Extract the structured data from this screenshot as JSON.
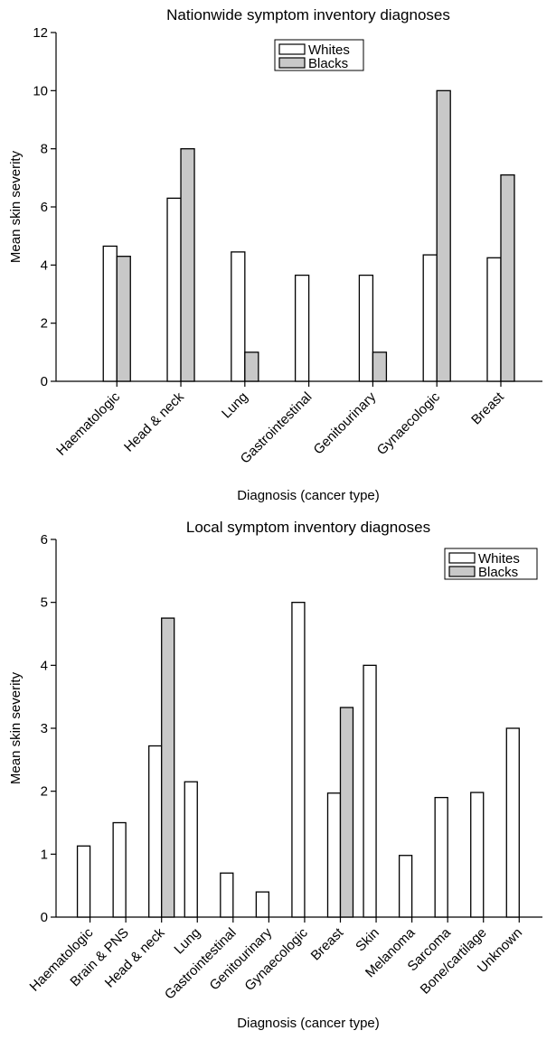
{
  "colors": {
    "whites": "#ffffff",
    "blacks": "#c8c8c8",
    "stroke": "#000000"
  },
  "chart_data": [
    {
      "type": "bar",
      "title": "Nationwide symptom inventory diagnoses",
      "xlabel": "Diagnosis (cancer type)",
      "ylabel": "Mean skin severity",
      "ylim": [
        0,
        12
      ],
      "yticks": [
        "0",
        "2",
        "4",
        "6",
        "8",
        "10",
        "12"
      ],
      "legend_position": "top-center",
      "grid": false,
      "categories": [
        "Haematologic",
        "Head & neck",
        "Lung",
        "Gastrointestinal",
        "Genitourinary",
        "Gynaecologic",
        "Breast"
      ],
      "series": [
        {
          "name": "Whites",
          "values": [
            4.65,
            6.3,
            4.45,
            3.65,
            3.65,
            4.35,
            4.25
          ]
        },
        {
          "name": "Blacks",
          "values": [
            4.3,
            8.0,
            1.0,
            null,
            1.0,
            10.0,
            7.1
          ]
        }
      ]
    },
    {
      "type": "bar",
      "title": "Local symptom inventory diagnoses",
      "xlabel": "Diagnosis (cancer type)",
      "ylabel": "Mean skin severity",
      "ylim": [
        0,
        6
      ],
      "yticks": [
        "0",
        "1",
        "2",
        "3",
        "4",
        "5",
        "6"
      ],
      "legend_position": "top-right",
      "grid": false,
      "categories": [
        "Haematologic",
        "Brain & PNS",
        "Head & neck",
        "Lung",
        "Gastrointestinal",
        "Genitourinary",
        "Gynaecologic",
        "Breast",
        "Skin",
        "Melanoma",
        "Sarcoma",
        "Bone/cartilage",
        "Unknown"
      ],
      "series": [
        {
          "name": "Whites",
          "values": [
            1.13,
            1.5,
            2.72,
            2.15,
            0.7,
            0.4,
            5.0,
            1.97,
            4.0,
            0.98,
            1.9,
            1.98,
            3.0
          ]
        },
        {
          "name": "Blacks",
          "values": [
            null,
            null,
            4.75,
            null,
            null,
            null,
            null,
            3.33,
            null,
            null,
            null,
            null,
            null
          ]
        }
      ]
    }
  ]
}
